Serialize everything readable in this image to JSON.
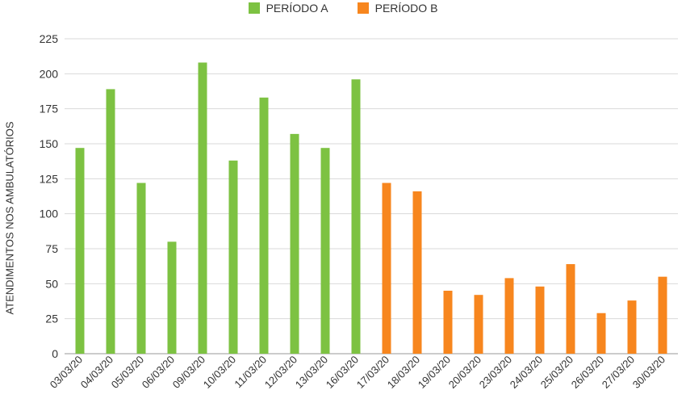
{
  "chart_data": {
    "type": "bar",
    "title": "",
    "xlabel": "",
    "ylabel": "ATENDIMENTOS NOS AMBULATÓRIOS",
    "ylim": [
      0,
      225
    ],
    "yticks": [
      0,
      25,
      50,
      75,
      100,
      125,
      150,
      175,
      200,
      225
    ],
    "grid": true,
    "legend_position": "top-center",
    "categories": [
      "03/03/20",
      "04/03/20",
      "05/03/20",
      "06/03/20",
      "09/03/20",
      "10/03/20",
      "11/03/20",
      "12/03/20",
      "13/03/20",
      "16/03/20",
      "17/03/20",
      "18/03/20",
      "19/03/20",
      "20/03/20",
      "23/03/20",
      "24/03/20",
      "25/03/20",
      "26/03/20",
      "27/03/20",
      "30/03/20"
    ],
    "series": [
      {
        "name": "PERÍODO A",
        "color": "#7dc242",
        "values": [
          147,
          189,
          122,
          80,
          208,
          138,
          183,
          157,
          147,
          196,
          null,
          null,
          null,
          null,
          null,
          null,
          null,
          null,
          null,
          null
        ]
      },
      {
        "name": "PERÍODO B",
        "color": "#f7861e",
        "values": [
          null,
          null,
          null,
          null,
          null,
          null,
          null,
          null,
          null,
          null,
          122,
          116,
          45,
          42,
          54,
          48,
          64,
          29,
          38,
          55
        ]
      }
    ]
  }
}
